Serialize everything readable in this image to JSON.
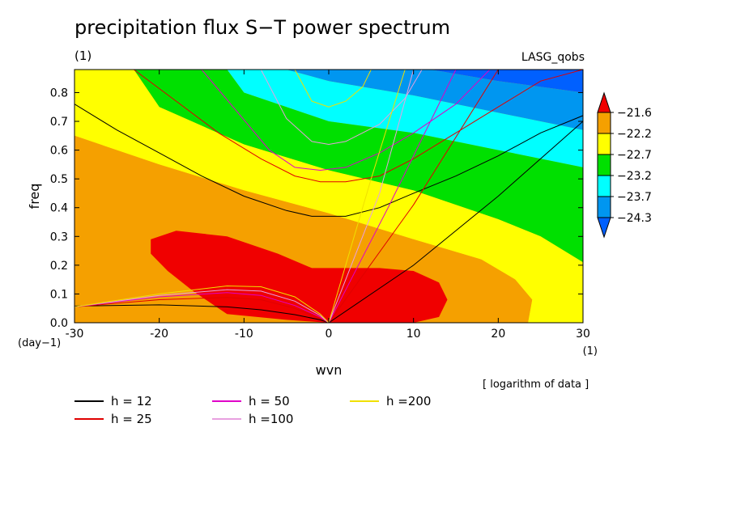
{
  "chart_data": {
    "type": "heatmap",
    "title": "precipitation flux S−T power spectrum",
    "units_label": "(1)",
    "source_label": "LASG_qobs",
    "note": "[ logarithm of data ]",
    "xlabel": "wvn",
    "ylabel": "freq",
    "x_unit": "(1)",
    "y_unit": "(day−1)",
    "xlim": [
      -30,
      30
    ],
    "ylim": [
      0,
      0.88
    ],
    "x_ticks": [
      -30,
      -20,
      -10,
      0,
      10,
      20,
      30
    ],
    "y_ticks": [
      0.0,
      0.1,
      0.2,
      0.3,
      0.4,
      0.5,
      0.6,
      0.7,
      0.8
    ],
    "colorbar": {
      "levels": [
        "−21.6",
        "−22.2",
        "−22.7",
        "−23.2",
        "−23.7",
        "−24.3"
      ],
      "colors": [
        "#f00000",
        "#f5a000",
        "#ffff00",
        "#00e000",
        "#00ffff",
        "#0096f0",
        "#0060ff"
      ]
    },
    "shading": [
      {
        "color": "#0060ff",
        "polygon": [
          [
            12,
            0.88
          ],
          [
            30,
            0.88
          ],
          [
            30,
            0.8
          ],
          [
            20,
            0.84
          ],
          [
            12,
            0.88
          ]
        ]
      },
      {
        "color": "#0096f0",
        "polygon": [
          [
            -5,
            0.88
          ],
          [
            12,
            0.88
          ],
          [
            20,
            0.84
          ],
          [
            30,
            0.8
          ],
          [
            30,
            0.67
          ],
          [
            20,
            0.73
          ],
          [
            10,
            0.79
          ],
          [
            0,
            0.84
          ],
          [
            -5,
            0.88
          ]
        ]
      },
      {
        "color": "#00ffff",
        "polygon": [
          [
            -12,
            0.88
          ],
          [
            -5,
            0.88
          ],
          [
            0,
            0.84
          ],
          [
            10,
            0.79
          ],
          [
            20,
            0.73
          ],
          [
            30,
            0.67
          ],
          [
            30,
            0.54
          ],
          [
            20,
            0.6
          ],
          [
            10,
            0.66
          ],
          [
            0,
            0.7
          ],
          [
            -10,
            0.8
          ],
          [
            -12,
            0.88
          ]
        ]
      },
      {
        "color": "#00e000",
        "polygon": [
          [
            -23,
            0.88
          ],
          [
            -12,
            0.88
          ],
          [
            -10,
            0.8
          ],
          [
            0,
            0.7
          ],
          [
            10,
            0.66
          ],
          [
            20,
            0.6
          ],
          [
            30,
            0.54
          ],
          [
            30,
            0.21
          ],
          [
            25,
            0.3
          ],
          [
            20,
            0.36
          ],
          [
            10,
            0.46
          ],
          [
            0,
            0.53
          ],
          [
            -10,
            0.62
          ],
          [
            -20,
            0.75
          ],
          [
            -23,
            0.88
          ]
        ]
      },
      {
        "color": "#ffff00",
        "polygon": [
          [
            -30,
            0.88
          ],
          [
            -23,
            0.88
          ],
          [
            -20,
            0.75
          ],
          [
            -10,
            0.62
          ],
          [
            0,
            0.53
          ],
          [
            10,
            0.46
          ],
          [
            20,
            0.36
          ],
          [
            25,
            0.3
          ],
          [
            30,
            0.21
          ],
          [
            30,
            0.0
          ],
          [
            23.5,
            0.0
          ],
          [
            24,
            0.08
          ],
          [
            22,
            0.15
          ],
          [
            18,
            0.22
          ],
          [
            10,
            0.29
          ],
          [
            0,
            0.38
          ],
          [
            -10,
            0.46
          ],
          [
            -20,
            0.55
          ],
          [
            -30,
            0.65
          ],
          [
            -30,
            0.88
          ]
        ]
      },
      {
        "color": "#f5a000",
        "polygon": [
          [
            -30,
            0.65
          ],
          [
            -20,
            0.55
          ],
          [
            -10,
            0.46
          ],
          [
            0,
            0.38
          ],
          [
            10,
            0.29
          ],
          [
            18,
            0.22
          ],
          [
            22,
            0.15
          ],
          [
            24,
            0.08
          ],
          [
            23.5,
            0.0
          ],
          [
            -30,
            0.0
          ],
          [
            -30,
            0.65
          ]
        ]
      },
      {
        "color": "#f00000",
        "polygon": [
          [
            -21,
            0.29
          ],
          [
            -18,
            0.32
          ],
          [
            -12,
            0.3
          ],
          [
            -6,
            0.24
          ],
          [
            -2,
            0.19
          ],
          [
            6,
            0.19
          ],
          [
            10,
            0.18
          ],
          [
            13,
            0.14
          ],
          [
            14,
            0.08
          ],
          [
            13,
            0.02
          ],
          [
            10,
            0.0
          ],
          [
            0,
            0.0
          ],
          [
            -5,
            0.01
          ],
          [
            -12,
            0.03
          ],
          [
            -16,
            0.11
          ],
          [
            -19,
            0.18
          ],
          [
            -21,
            0.24
          ],
          [
            -21,
            0.29
          ]
        ]
      }
    ],
    "series": [
      {
        "name": "h = 12",
        "color": "#000000",
        "curves": [
          [
            [
              -30,
              0.76
            ],
            [
              -25,
              0.67
            ],
            [
              -20,
              0.59
            ],
            [
              -15,
              0.51
            ],
            [
              -10,
              0.44
            ],
            [
              -5,
              0.39
            ],
            [
              -2,
              0.37
            ],
            [
              2,
              0.37
            ],
            [
              6,
              0.4
            ],
            [
              10,
              0.45
            ],
            [
              15,
              0.51
            ],
            [
              20,
              0.58
            ],
            [
              25,
              0.66
            ],
            [
              30,
              0.72
            ]
          ],
          [
            [
              -30,
              0.058
            ],
            [
              -20,
              0.062
            ],
            [
              -12,
              0.055
            ],
            [
              -8,
              0.045
            ],
            [
              -4,
              0.028
            ],
            [
              -1,
              0.01
            ],
            [
              0,
              0.0
            ]
          ],
          [
            [
              0,
              0.0
            ],
            [
              10,
              0.2
            ],
            [
              20,
              0.44
            ],
            [
              30,
              0.7
            ]
          ]
        ]
      },
      {
        "name": "h = 25",
        "color": "#e00000",
        "curves": [
          [
            [
              -23,
              0.88
            ],
            [
              -18,
              0.77
            ],
            [
              -13,
              0.66
            ],
            [
              -8,
              0.57
            ],
            [
              -4,
              0.51
            ],
            [
              -1,
              0.49
            ],
            [
              2,
              0.49
            ],
            [
              6,
              0.51
            ],
            [
              10,
              0.57
            ],
            [
              15,
              0.66
            ],
            [
              20,
              0.75
            ],
            [
              25,
              0.84
            ],
            [
              30,
              0.88
            ]
          ],
          [
            [
              -30,
              0.055
            ],
            [
              -20,
              0.08
            ],
            [
              -12,
              0.088
            ],
            [
              -8,
              0.08
            ],
            [
              -4,
              0.05
            ],
            [
              -1,
              0.015
            ],
            [
              0,
              0.0
            ]
          ],
          [
            [
              0,
              0.0
            ],
            [
              10,
              0.41
            ],
            [
              20,
              0.88
            ]
          ]
        ]
      },
      {
        "name": "h = 50",
        "color": "#e000c8",
        "curves": [
          [
            [
              -15,
              0.88
            ],
            [
              -11,
              0.74
            ],
            [
              -7,
              0.6
            ],
            [
              -4,
              0.54
            ],
            [
              -1,
              0.53
            ],
            [
              2,
              0.54
            ],
            [
              6,
              0.59
            ],
            [
              10,
              0.66
            ],
            [
              15,
              0.76
            ],
            [
              19,
              0.88
            ]
          ],
          [
            [
              -30,
              0.055
            ],
            [
              -20,
              0.09
            ],
            [
              -12,
              0.105
            ],
            [
              -8,
              0.095
            ],
            [
              -4,
              0.06
            ],
            [
              -1,
              0.02
            ],
            [
              0,
              0.0
            ]
          ],
          [
            [
              0,
              0.0
            ],
            [
              7,
              0.4
            ],
            [
              15,
              0.88
            ]
          ]
        ]
      },
      {
        "name": "h =100",
        "color": "#e8a0e0",
        "curves": [
          [
            [
              -8,
              0.88
            ],
            [
              -5,
              0.71
            ],
            [
              -2,
              0.63
            ],
            [
              0,
              0.62
            ],
            [
              2,
              0.63
            ],
            [
              6,
              0.69
            ],
            [
              9,
              0.78
            ],
            [
              11,
              0.88
            ]
          ],
          [
            [
              -30,
              0.055
            ],
            [
              -20,
              0.095
            ],
            [
              -12,
              0.115
            ],
            [
              -8,
              0.11
            ],
            [
              -4,
              0.075
            ],
            [
              -1,
              0.025
            ],
            [
              0,
              0.0
            ]
          ],
          [
            [
              0,
              0.0
            ],
            [
              6,
              0.45
            ],
            [
              10,
              0.88
            ]
          ]
        ]
      },
      {
        "name": "h =200",
        "color": "#f0e000",
        "curves": [
          [
            [
              -4,
              0.88
            ],
            [
              -2,
              0.77
            ],
            [
              0,
              0.75
            ],
            [
              2,
              0.77
            ],
            [
              4,
              0.82
            ],
            [
              5,
              0.88
            ]
          ],
          [
            [
              -30,
              0.055
            ],
            [
              -20,
              0.1
            ],
            [
              -12,
              0.128
            ],
            [
              -8,
              0.125
            ],
            [
              -4,
              0.09
            ],
            [
              -1,
              0.03
            ],
            [
              0,
              0.0
            ]
          ],
          [
            [
              0,
              0.0
            ],
            [
              5,
              0.5
            ],
            [
              9,
              0.88
            ]
          ]
        ]
      }
    ]
  }
}
